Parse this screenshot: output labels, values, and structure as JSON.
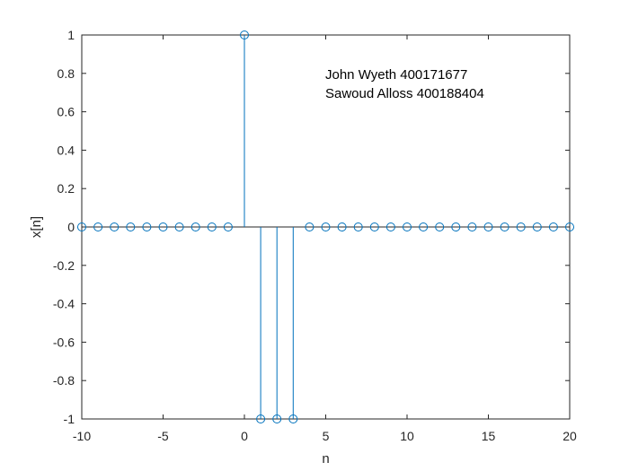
{
  "chart_data": {
    "type": "stem",
    "x": [
      -10,
      -9,
      -8,
      -7,
      -6,
      -5,
      -4,
      -3,
      -2,
      -1,
      0,
      1,
      2,
      3,
      4,
      5,
      6,
      7,
      8,
      9,
      10,
      11,
      12,
      13,
      14,
      15,
      16,
      17,
      18,
      19,
      20
    ],
    "values": [
      0,
      0,
      0,
      0,
      0,
      0,
      0,
      0,
      0,
      0,
      1,
      -1,
      -1,
      -1,
      0,
      0,
      0,
      0,
      0,
      0,
      0,
      0,
      0,
      0,
      0,
      0,
      0,
      0,
      0,
      0,
      0
    ],
    "xlabel": "n",
    "ylabel": "x[n]",
    "xlim": [
      -10,
      20
    ],
    "ylim": [
      -1,
      1
    ],
    "xticks": [
      -10,
      -5,
      0,
      5,
      10,
      15,
      20
    ],
    "yticks": [
      -1,
      -0.8,
      -0.6,
      -0.4,
      -0.2,
      0,
      0.2,
      0.4,
      0.6,
      0.8,
      1
    ],
    "grid": false,
    "marker": "open-circle",
    "color": "#0072BD",
    "annotations": [
      "John Wyeth 400171677",
      "Sawoud Alloss 400188404"
    ]
  }
}
